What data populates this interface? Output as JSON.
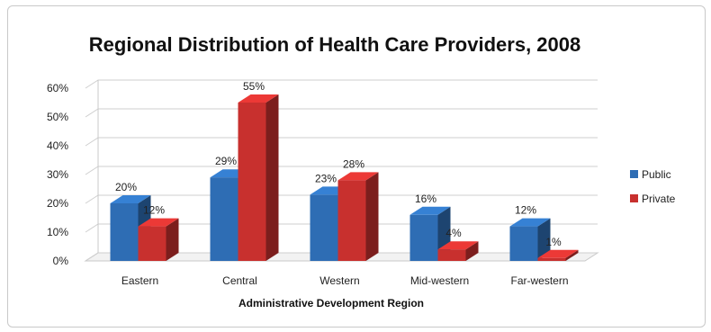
{
  "chart_data": {
    "type": "bar",
    "title": "Regional Distribution of Health Care Providers, 2008",
    "xlabel": "Administrative Development Region",
    "ylabel": "",
    "ylim": [
      0,
      60
    ],
    "yticks": [
      "0%",
      "10%",
      "20%",
      "30%",
      "40%",
      "50%",
      "60%"
    ],
    "categories": [
      "Eastern",
      "Central",
      "Western",
      "Mid-western",
      "Far-western"
    ],
    "series": [
      {
        "name": "Public",
        "values": [
          20,
          29,
          23,
          16,
          12
        ],
        "labels": [
          "20%",
          "29%",
          "23%",
          "16%",
          "12%"
        ],
        "color": "#2e6db4"
      },
      {
        "name": "Private",
        "values": [
          12,
          55,
          28,
          4,
          1
        ],
        "labels": [
          "12%",
          "55%",
          "28%",
          "4%",
          "1%"
        ],
        "color": "#c8302e"
      }
    ],
    "grid": true,
    "legend_position": "right"
  }
}
